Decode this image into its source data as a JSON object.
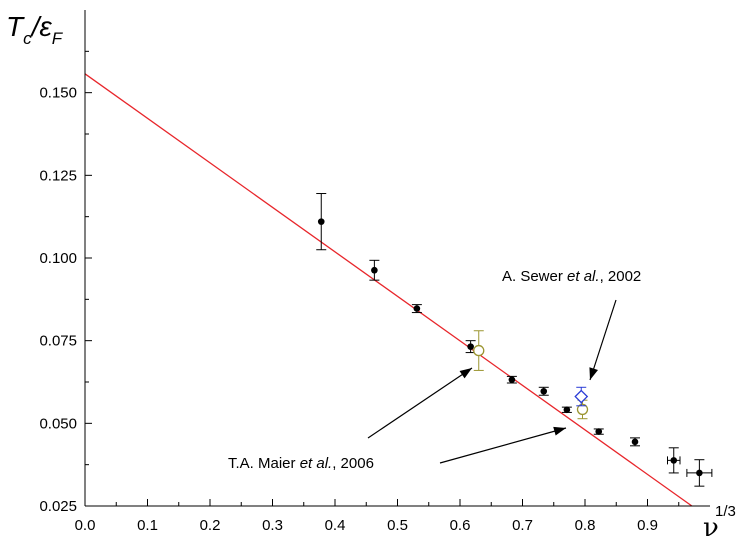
{
  "chart_data": {
    "type": "scatter",
    "title": "",
    "ylabel": {
      "main": "T",
      "sub1": "c",
      "sep": "/",
      "main2": "ε",
      "sub2": "F"
    },
    "xlabel": {
      "main": "ν",
      "sup": "1/3"
    },
    "xlim": [
      0.0,
      1.0
    ],
    "ylim": [
      0.025,
      0.175
    ],
    "x_ticks": [
      "0.0",
      "0.1",
      "0.2",
      "0.3",
      "0.4",
      "0.5",
      "0.6",
      "0.7",
      "0.8",
      "0.9"
    ],
    "y_ticks": [
      "0.025",
      "0.050",
      "0.075",
      "0.100",
      "0.125",
      "0.150"
    ],
    "fit_line": {
      "color": "#e8262b",
      "x": [
        0.0,
        1.0
      ],
      "y": [
        0.1557,
        0.0211
      ]
    },
    "series": [
      {
        "marker": "filled-circle",
        "color": "#000000",
        "points": [
          {
            "x": 0.378,
            "y": 0.111,
            "yerr": 0.0085
          },
          {
            "x": 0.463,
            "y": 0.0963,
            "yerr": 0.003
          },
          {
            "x": 0.531,
            "y": 0.0847,
            "yerr": 0.0012
          },
          {
            "x": 0.617,
            "y": 0.0732,
            "yerr": 0.0018
          },
          {
            "x": 0.683,
            "y": 0.0632,
            "yerr": 0.001
          },
          {
            "x": 0.734,
            "y": 0.0597,
            "yerr": 0.0012
          },
          {
            "x": 0.771,
            "y": 0.0541,
            "yerr": 0.0008
          },
          {
            "x": 0.822,
            "y": 0.0475,
            "yerr": 0.0008
          },
          {
            "x": 0.88,
            "y": 0.0444,
            "yerr": 0.0012
          },
          {
            "x": 0.942,
            "y": 0.0388,
            "yerr": 0.0038,
            "xerr": 0.01
          },
          {
            "x": 0.983,
            "y": 0.035,
            "yerr": 0.004,
            "xerr": 0.02
          }
        ]
      },
      {
        "marker": "open-circle",
        "color": "#9b9530",
        "points": [
          {
            "x": 0.63,
            "y": 0.072,
            "yerr": 0.006
          },
          {
            "x": 0.796,
            "y": 0.0542,
            "yerr": 0.0028
          }
        ]
      },
      {
        "marker": "open-diamond",
        "color": "#2a3bd6",
        "points": [
          {
            "x": 0.794,
            "y": 0.0581,
            "yerr": 0.0028
          }
        ]
      }
    ],
    "annotations": [
      {
        "parts": [
          {
            "text": "A. Sewer ",
            "italic": false
          },
          {
            "text": "et al.",
            "italic": true
          },
          {
            "text": ", 2002",
            "italic": false
          }
        ]
      },
      {
        "parts": [
          {
            "text": "T.A. Maier ",
            "italic": false
          },
          {
            "text": "et al.",
            "italic": true
          },
          {
            "text": ",  2006",
            "italic": false
          }
        ]
      }
    ]
  }
}
